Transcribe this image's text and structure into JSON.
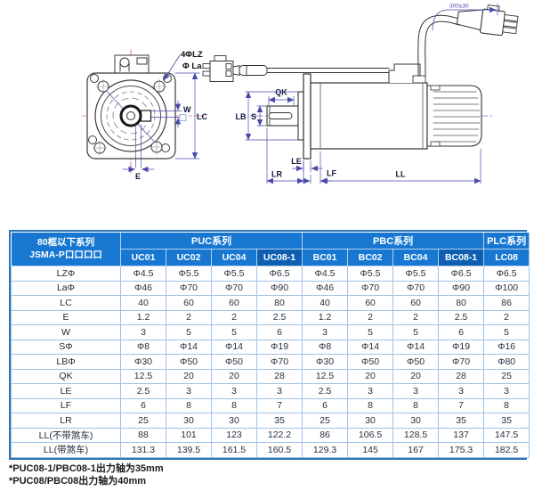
{
  "drawing": {
    "front_view": {
      "holes_label": "4ΦLZ",
      "bolt_circle_label": "Φ La",
      "w": "W",
      "lc": "LC",
      "e": "E"
    },
    "side_view": {
      "cable_dim": "300±30",
      "qk": "QK",
      "s": "S",
      "lb": "LB",
      "le": "LE",
      "lr": "LR",
      "lf": "LF",
      "ll": "LL"
    }
  },
  "table": {
    "corner_header": {
      "line1": "80框以下系列",
      "line2": "JSMA-P口口口口"
    },
    "groups": [
      {
        "label": "PUC系列",
        "span": 4
      },
      {
        "label": "PBC系列",
        "span": 4
      },
      {
        "label": "PLC系列",
        "span": 1
      }
    ],
    "columns": [
      "UC01",
      "UC02",
      "UC04",
      "UC08-1",
      "BC01",
      "BC02",
      "BC04",
      "BC08-1",
      "LC08"
    ],
    "highlight_columns": [
      "UC08-1",
      "BC08-1"
    ],
    "group_start_columns": [
      "BC01",
      "LC08"
    ],
    "rows": [
      {
        "label": "LZΦ",
        "values": [
          "Φ4.5",
          "Φ5.5",
          "Φ5.5",
          "Φ6.5",
          "Φ4.5",
          "Φ5.5",
          "Φ5.5",
          "Φ6.5",
          "Φ6.5"
        ]
      },
      {
        "label": "LaΦ",
        "values": [
          "Φ46",
          "Φ70",
          "Φ70",
          "Φ90",
          "Φ46",
          "Φ70",
          "Φ70",
          "Φ90",
          "Φ100"
        ]
      },
      {
        "label": "LC",
        "values": [
          "40",
          "60",
          "60",
          "80",
          "40",
          "60",
          "60",
          "80",
          "86"
        ]
      },
      {
        "label": "E",
        "values": [
          "1.2",
          "2",
          "2",
          "2.5",
          "1.2",
          "2",
          "2",
          "2.5",
          "2"
        ]
      },
      {
        "label": "W",
        "values": [
          "3",
          "5",
          "5",
          "6",
          "3",
          "5",
          "5",
          "6",
          "5"
        ]
      },
      {
        "label": "SΦ",
        "values": [
          "Φ8",
          "Φ14",
          "Φ14",
          "Φ19",
          "Φ8",
          "Φ14",
          "Φ14",
          "Φ19",
          "Φ16"
        ]
      },
      {
        "label": "LBΦ",
        "values": [
          "Φ30",
          "Φ50",
          "Φ50",
          "Φ70",
          "Φ30",
          "Φ50",
          "Φ50",
          "Φ70",
          "Φ80"
        ]
      },
      {
        "label": "QK",
        "values": [
          "12.5",
          "20",
          "20",
          "28",
          "12.5",
          "20",
          "20",
          "28",
          "25"
        ]
      },
      {
        "label": "LE",
        "values": [
          "2.5",
          "3",
          "3",
          "3",
          "2.5",
          "3",
          "3",
          "3",
          "3"
        ]
      },
      {
        "label": "LF",
        "values": [
          "6",
          "8",
          "8",
          "7",
          "6",
          "8",
          "8",
          "7",
          "8"
        ]
      },
      {
        "label": "LR",
        "values": [
          "25",
          "30",
          "30",
          "35",
          "25",
          "30",
          "30",
          "35",
          "35"
        ]
      },
      {
        "label": "LL(不带煞车)",
        "values": [
          "88",
          "101",
          "123",
          "122.2",
          "86",
          "106.5",
          "128.5",
          "137",
          "147.5"
        ]
      },
      {
        "label": "LL(带煞车)",
        "values": [
          "131.3",
          "139.5",
          "161.5",
          "160.5",
          "129.3",
          "145",
          "167",
          "175.3",
          "182.5"
        ]
      }
    ]
  },
  "footnotes": [
    "*PUC08-1/PBC08-1出力轴为35mm",
    "*PUC08/PBC08出力轴为40mm"
  ],
  "colors": {
    "header_blue": "#1878D1",
    "header_blue_dark": "#0E5FB2",
    "table_border": "#9DC3E6",
    "table_outer_border": "#2E74B5",
    "dimension_line": "#4A4AA8",
    "centerline_red": "#D96A6A"
  }
}
